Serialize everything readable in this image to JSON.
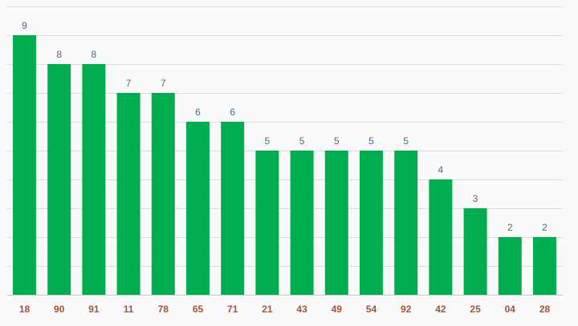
{
  "chart_data": {
    "type": "bar",
    "title": "",
    "xlabel": "",
    "ylabel": "",
    "categories": [
      "18",
      "90",
      "91",
      "11",
      "78",
      "65",
      "71",
      "21",
      "43",
      "49",
      "54",
      "92",
      "42",
      "25",
      "04",
      "28"
    ],
    "values": [
      9,
      8,
      8,
      7,
      7,
      6,
      6,
      5,
      5,
      5,
      5,
      5,
      4,
      3,
      2,
      2
    ],
    "ylim": [
      0,
      10
    ],
    "gridlines": true,
    "grid_step": 1,
    "legend": "none",
    "colors": {
      "bar": "#00ad4f",
      "data_label": "#4a6a8a",
      "tick_label": "#a5533a",
      "grid": "#dcdcdc",
      "background": "#fafafa"
    }
  }
}
